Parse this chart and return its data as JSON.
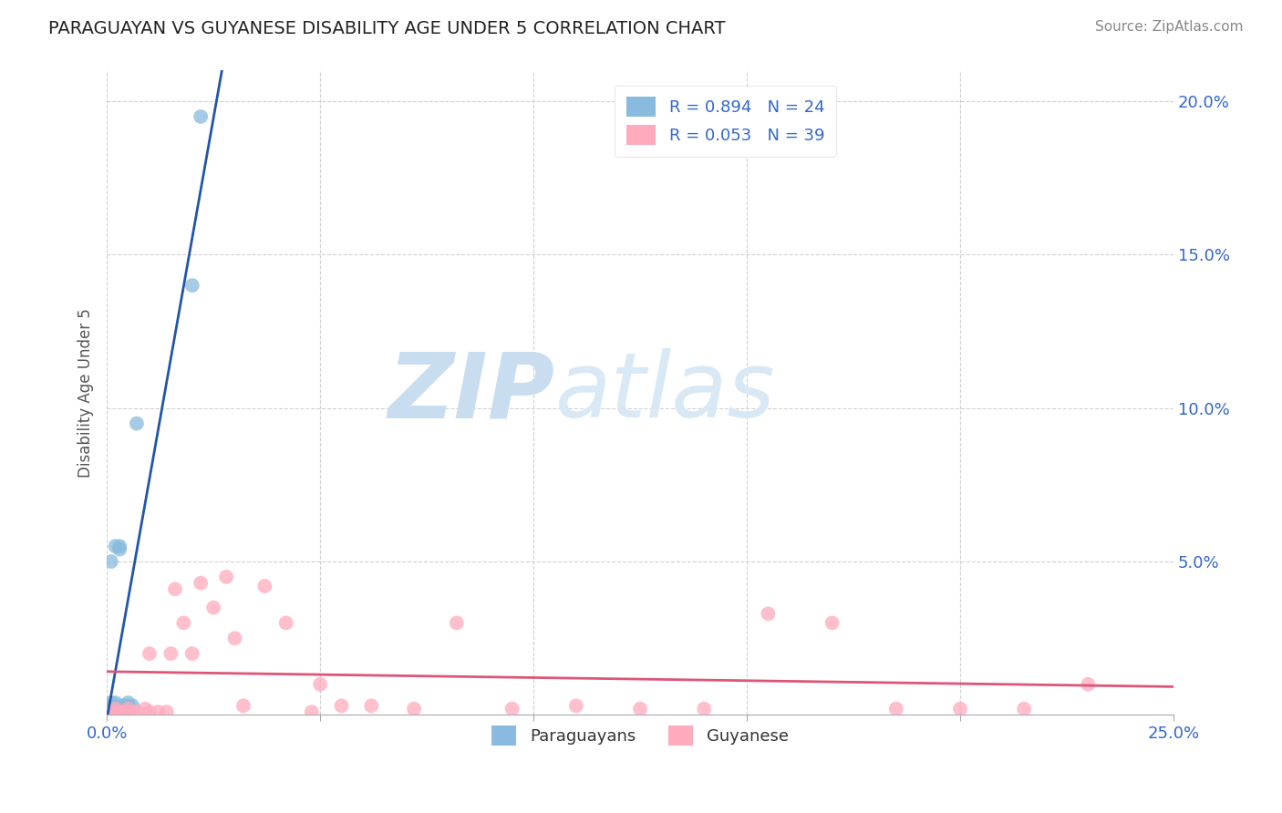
{
  "title": "PARAGUAYAN VS GUYANESE DISABILITY AGE UNDER 5 CORRELATION CHART",
  "source": "Source: ZipAtlas.com",
  "ylabel": "Disability Age Under 5",
  "watermark_zip": "ZIP",
  "watermark_atlas": "atlas",
  "legend_paraguayan": "Paraguayans",
  "legend_guyanese": "Guyanese",
  "r_paraguayan": 0.894,
  "n_paraguayan": 24,
  "r_guyanese": 0.053,
  "n_guyanese": 39,
  "xlim": [
    0.0,
    0.25
  ],
  "ylim": [
    0.0,
    0.21
  ],
  "xticks": [
    0.0,
    0.05,
    0.1,
    0.15,
    0.2,
    0.25
  ],
  "yticks": [
    0.0,
    0.05,
    0.1,
    0.15,
    0.2
  ],
  "paraguayan_x": [
    0.0002,
    0.0003,
    0.0004,
    0.0005,
    0.0006,
    0.0007,
    0.0008,
    0.0009,
    0.001,
    0.001,
    0.001,
    0.002,
    0.002,
    0.002,
    0.003,
    0.003,
    0.003,
    0.004,
    0.005,
    0.005,
    0.006,
    0.007,
    0.02,
    0.022
  ],
  "paraguayan_y": [
    0.001,
    0.001,
    0.002,
    0.001,
    0.002,
    0.001,
    0.001,
    0.002,
    0.003,
    0.004,
    0.05,
    0.002,
    0.004,
    0.055,
    0.003,
    0.054,
    0.055,
    0.003,
    0.003,
    0.004,
    0.003,
    0.095,
    0.14,
    0.195
  ],
  "guyanese_x": [
    0.001,
    0.002,
    0.003,
    0.004,
    0.005,
    0.006,
    0.007,
    0.009,
    0.01,
    0.012,
    0.014,
    0.016,
    0.018,
    0.02,
    0.022,
    0.025,
    0.028,
    0.032,
    0.037,
    0.042,
    0.048,
    0.055,
    0.062,
    0.072,
    0.082,
    0.095,
    0.11,
    0.125,
    0.14,
    0.155,
    0.17,
    0.185,
    0.2,
    0.215,
    0.23,
    0.01,
    0.015,
    0.03,
    0.05
  ],
  "guyanese_y": [
    0.001,
    0.002,
    0.001,
    0.001,
    0.002,
    0.001,
    0.001,
    0.002,
    0.001,
    0.001,
    0.001,
    0.041,
    0.03,
    0.02,
    0.043,
    0.035,
    0.045,
    0.003,
    0.042,
    0.03,
    0.001,
    0.003,
    0.003,
    0.002,
    0.03,
    0.002,
    0.003,
    0.002,
    0.002,
    0.033,
    0.03,
    0.002,
    0.002,
    0.002,
    0.01,
    0.02,
    0.02,
    0.025,
    0.01
  ],
  "color_paraguayan": "#88BBDD",
  "color_guyanese": "#FFAABD",
  "color_trendline_paraguayan": "#2255AA",
  "color_trendline_guyanese": "#DD5577",
  "background_color": "#FFFFFF",
  "grid_color": "#CCCCCC",
  "title_color": "#222222",
  "axis_label_color": "#3366CC",
  "watermark_color_zip": "#C8DDEF",
  "watermark_color_atlas": "#D8E8F5"
}
